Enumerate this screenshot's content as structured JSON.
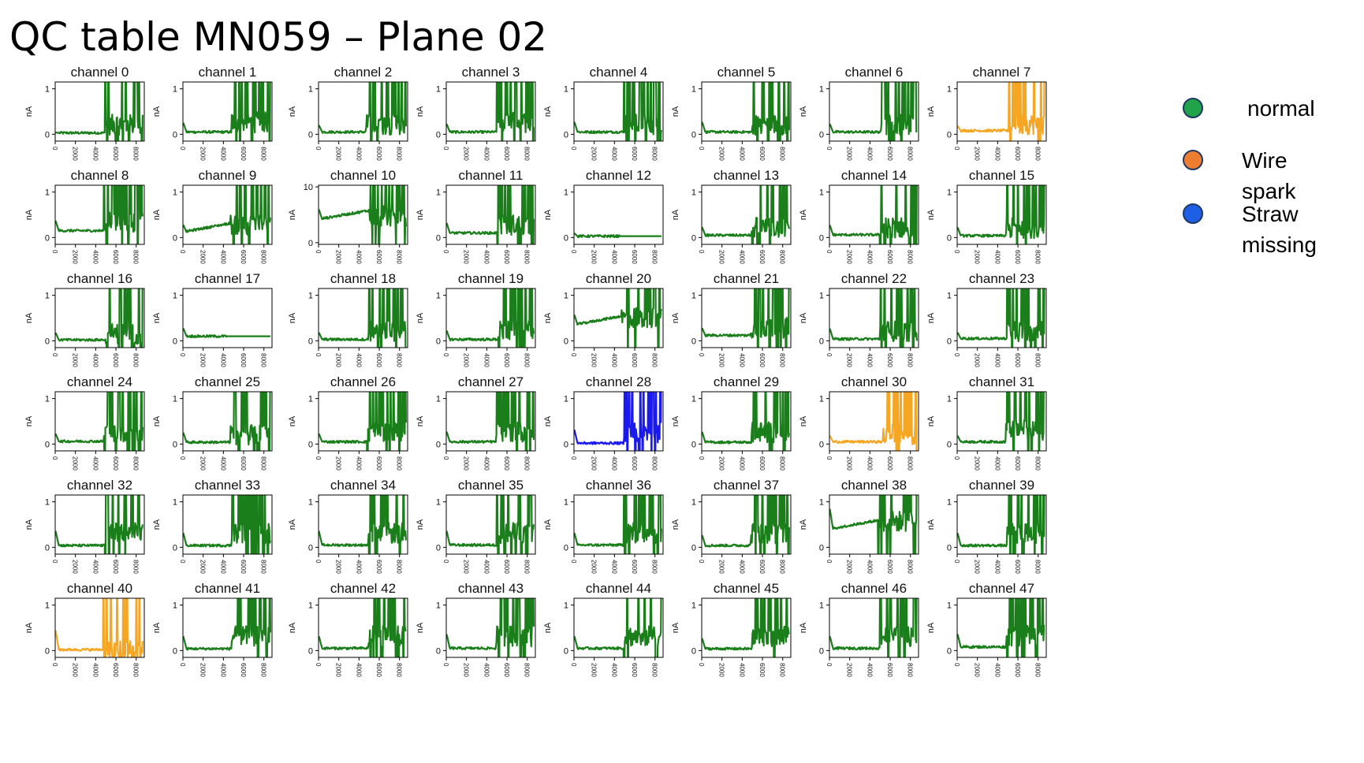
{
  "title": "QC table MN059 – Plane 02",
  "legend": {
    "items": [
      {
        "label": "normal",
        "color": "#21a34a"
      },
      {
        "label": "Wire spark",
        "color": "#ed7d31"
      },
      {
        "label": "Straw\nmissing",
        "color": "#1f5fe6"
      }
    ]
  },
  "chart_data": {
    "type": "line",
    "panel_count": 48,
    "ylabel": "nA",
    "x_ticks": [
      "0",
      "2000",
      "4000",
      "6000",
      "8000"
    ],
    "xlim": [
      0,
      8800
    ],
    "default_ylim": [
      -0.15,
      1.15
    ],
    "default_y_ticks": [
      "0",
      "1"
    ],
    "status_colors": {
      "normal": "#1a7f1a",
      "spark": "#f5a623",
      "missing": "#1a1aee"
    },
    "panels": [
      {
        "title": "channel 0",
        "status": "normal",
        "ylim": [
          -0.15,
          1.15
        ],
        "y_ticks": [
          "0",
          "1"
        ],
        "baseline": 0.03,
        "onset": 0.04,
        "burst_start": 4900,
        "burst_level": 0.2
      },
      {
        "title": "channel 1",
        "status": "normal",
        "ylim": [
          -0.15,
          1.15
        ],
        "y_ticks": [
          "0",
          "1"
        ],
        "baseline": 0.05,
        "onset": 0.28,
        "burst_start": 4800,
        "burst_level": 0.25
      },
      {
        "title": "channel 2",
        "status": "normal",
        "ylim": [
          -0.15,
          1.15
        ],
        "y_ticks": [
          "0",
          "1"
        ],
        "baseline": 0.05,
        "onset": 0.22,
        "burst_start": 4700,
        "burst_level": 0.2
      },
      {
        "title": "channel 3",
        "status": "normal",
        "ylim": [
          -0.15,
          1.15
        ],
        "y_ticks": [
          "0",
          "1"
        ],
        "baseline": 0.05,
        "onset": 0.25,
        "burst_start": 5000,
        "burst_level": 0.25
      },
      {
        "title": "channel 4",
        "status": "normal",
        "ylim": [
          -0.15,
          1.15
        ],
        "y_ticks": [
          "0",
          "1"
        ],
        "baseline": 0.05,
        "onset": 0.3,
        "burst_start": 4900,
        "burst_level": 0.2
      },
      {
        "title": "channel 5",
        "status": "normal",
        "ylim": [
          -0.15,
          1.15
        ],
        "y_ticks": [
          "0",
          "1"
        ],
        "baseline": 0.05,
        "onset": 0.3,
        "burst_start": 5000,
        "burst_level": 0.2
      },
      {
        "title": "channel 6",
        "status": "normal",
        "ylim": [
          -0.15,
          1.15
        ],
        "y_ticks": [
          "0",
          "1"
        ],
        "baseline": 0.05,
        "onset": 0.25,
        "burst_start": 5100,
        "burst_level": 0.2
      },
      {
        "title": "channel 7",
        "status": "spark",
        "ylim": [
          -0.15,
          1.15
        ],
        "y_ticks": [
          "0",
          "1"
        ],
        "baseline": 0.08,
        "onset": 0.2,
        "burst_start": 5100,
        "burst_level": 0.2
      },
      {
        "title": "channel 8",
        "status": "normal",
        "ylim": [
          -0.15,
          1.15
        ],
        "y_ticks": [
          "0",
          "1"
        ],
        "baseline": 0.15,
        "onset": 0.4,
        "burst_start": 4800,
        "burst_level": 0.3
      },
      {
        "title": "channel 9",
        "status": "normal",
        "ylim": [
          -0.15,
          1.15
        ],
        "y_ticks": [
          "0",
          "1"
        ],
        "baseline": 0.12,
        "onset": 0.3,
        "burst_start": 4700,
        "burst_level": 0.25
      },
      {
        "title": "channel 10",
        "status": "normal",
        "ylim": [
          -0.3,
          10.3
        ],
        "y_ticks": [
          "0",
          "10"
        ],
        "baseline": 4.2,
        "onset": 6.2,
        "burst_start": 5000,
        "burst_level": 3.5
      },
      {
        "title": "channel 11",
        "status": "normal",
        "ylim": [
          -0.15,
          1.15
        ],
        "y_ticks": [
          "0",
          "1"
        ],
        "baseline": 0.1,
        "onset": 0.35,
        "burst_start": 5000,
        "burst_level": 0.25
      },
      {
        "title": "channel 12",
        "status": "normal",
        "ylim": [
          -0.15,
          1.15
        ],
        "y_ticks": [
          "0",
          "1"
        ],
        "baseline": 0.03,
        "onset": 0.1,
        "burst_start": 4500,
        "burst_level": 0.0
      },
      {
        "title": "channel 13",
        "status": "normal",
        "ylim": [
          -0.15,
          1.15
        ],
        "y_ticks": [
          "0",
          "1"
        ],
        "baseline": 0.05,
        "onset": 0.25,
        "burst_start": 4900,
        "burst_level": 0.2
      },
      {
        "title": "channel 14",
        "status": "normal",
        "ylim": [
          -0.15,
          1.15
        ],
        "y_ticks": [
          "0",
          "1"
        ],
        "baseline": 0.06,
        "onset": 0.3,
        "burst_start": 5000,
        "burst_level": 0.2
      },
      {
        "title": "channel 15",
        "status": "normal",
        "ylim": [
          -0.15,
          1.15
        ],
        "y_ticks": [
          "0",
          "1"
        ],
        "baseline": 0.04,
        "onset": 0.25,
        "burst_start": 4800,
        "burst_level": 0.2
      },
      {
        "title": "channel 16",
        "status": "normal",
        "ylim": [
          -0.15,
          1.15
        ],
        "y_ticks": [
          "0",
          "1"
        ],
        "baseline": 0.02,
        "onset": 0.2,
        "burst_start": 5000,
        "burst_level": 0.15
      },
      {
        "title": "channel 17",
        "status": "normal",
        "ylim": [
          -0.15,
          1.15
        ],
        "y_ticks": [
          "0",
          "1"
        ],
        "baseline": 0.1,
        "onset": 0.3,
        "burst_start": 4300,
        "burst_level": 0.0
      },
      {
        "title": "channel 18",
        "status": "normal",
        "ylim": [
          -0.15,
          1.15
        ],
        "y_ticks": [
          "0",
          "1"
        ],
        "baseline": 0.03,
        "onset": 0.2,
        "burst_start": 4900,
        "burst_level": 0.2
      },
      {
        "title": "channel 19",
        "status": "normal",
        "ylim": [
          -0.15,
          1.15
        ],
        "y_ticks": [
          "0",
          "1"
        ],
        "baseline": 0.03,
        "onset": 0.25,
        "burst_start": 5100,
        "burst_level": 0.2
      },
      {
        "title": "channel 20",
        "status": "normal",
        "ylim": [
          -0.15,
          1.15
        ],
        "y_ticks": [
          "0",
          "1"
        ],
        "baseline": 0.35,
        "onset": 0.6,
        "burst_start": 4700,
        "burst_level": 0.4
      },
      {
        "title": "channel 21",
        "status": "normal",
        "ylim": [
          -0.15,
          1.15
        ],
        "y_ticks": [
          "0",
          "1"
        ],
        "baseline": 0.12,
        "onset": 0.3,
        "burst_start": 4800,
        "burst_level": 0.25
      },
      {
        "title": "channel 22",
        "status": "normal",
        "ylim": [
          -0.15,
          1.15
        ],
        "y_ticks": [
          "0",
          "1"
        ],
        "baseline": 0.04,
        "onset": 0.3,
        "burst_start": 5000,
        "burst_level": 0.2
      },
      {
        "title": "channel 23",
        "status": "normal",
        "ylim": [
          -0.15,
          1.15
        ],
        "y_ticks": [
          "0",
          "1"
        ],
        "baseline": 0.05,
        "onset": 0.2,
        "burst_start": 4900,
        "burst_level": 0.2
      },
      {
        "title": "channel 24",
        "status": "normal",
        "ylim": [
          -0.15,
          1.15
        ],
        "y_ticks": [
          "0",
          "1"
        ],
        "baseline": 0.06,
        "onset": 0.25,
        "burst_start": 4800,
        "burst_level": 0.25
      },
      {
        "title": "channel 25",
        "status": "normal",
        "ylim": [
          -0.15,
          1.15
        ],
        "y_ticks": [
          "0",
          "1"
        ],
        "baseline": 0.04,
        "onset": 0.28,
        "burst_start": 4700,
        "burst_level": 0.2
      },
      {
        "title": "channel 26",
        "status": "normal",
        "ylim": [
          -0.15,
          1.15
        ],
        "y_ticks": [
          "0",
          "1"
        ],
        "baseline": 0.05,
        "onset": 0.25,
        "burst_start": 4800,
        "burst_level": 0.25
      },
      {
        "title": "channel 27",
        "status": "normal",
        "ylim": [
          -0.15,
          1.15
        ],
        "y_ticks": [
          "0",
          "1"
        ],
        "baseline": 0.05,
        "onset": 0.3,
        "burst_start": 4900,
        "burst_level": 0.25
      },
      {
        "title": "channel 28",
        "status": "missing",
        "ylim": [
          -0.15,
          1.15
        ],
        "y_ticks": [
          "0",
          "1"
        ],
        "baseline": 0.02,
        "onset": 0.35,
        "burst_start": 4900,
        "burst_level": 0.25
      },
      {
        "title": "channel 29",
        "status": "normal",
        "ylim": [
          -0.15,
          1.15
        ],
        "y_ticks": [
          "0",
          "1"
        ],
        "baseline": 0.04,
        "onset": 0.3,
        "burst_start": 4900,
        "burst_level": 0.25
      },
      {
        "title": "channel 30",
        "status": "spark",
        "ylim": [
          -0.15,
          1.15
        ],
        "y_ticks": [
          "0",
          "1"
        ],
        "baseline": 0.05,
        "onset": 0.2,
        "burst_start": 5300,
        "burst_level": 0.2
      },
      {
        "title": "channel 31",
        "status": "normal",
        "ylim": [
          -0.15,
          1.15
        ],
        "y_ticks": [
          "0",
          "1"
        ],
        "baseline": 0.05,
        "onset": 0.2,
        "burst_start": 4800,
        "burst_level": 0.3
      },
      {
        "title": "channel 32",
        "status": "normal",
        "ylim": [
          -0.15,
          1.15
        ],
        "y_ticks": [
          "0",
          "1"
        ],
        "baseline": 0.04,
        "onset": 0.4,
        "burst_start": 4900,
        "burst_level": 0.3
      },
      {
        "title": "channel 33",
        "status": "normal",
        "ylim": [
          -0.15,
          1.15
        ],
        "y_ticks": [
          "0",
          "1"
        ],
        "baseline": 0.04,
        "onset": 0.35,
        "burst_start": 4800,
        "burst_level": 0.3
      },
      {
        "title": "channel 34",
        "status": "normal",
        "ylim": [
          -0.15,
          1.15
        ],
        "y_ticks": [
          "0",
          "1"
        ],
        "baseline": 0.05,
        "onset": 0.4,
        "burst_start": 4900,
        "burst_level": 0.3
      },
      {
        "title": "channel 35",
        "status": "normal",
        "ylim": [
          -0.15,
          1.15
        ],
        "y_ticks": [
          "0",
          "1"
        ],
        "baseline": 0.05,
        "onset": 0.4,
        "burst_start": 5000,
        "burst_level": 0.3
      },
      {
        "title": "channel 36",
        "status": "normal",
        "ylim": [
          -0.15,
          1.15
        ],
        "y_ticks": [
          "0",
          "1"
        ],
        "baseline": 0.05,
        "onset": 0.35,
        "burst_start": 4900,
        "burst_level": 0.3
      },
      {
        "title": "channel 37",
        "status": "normal",
        "ylim": [
          -0.15,
          1.15
        ],
        "y_ticks": [
          "0",
          "1"
        ],
        "baseline": 0.04,
        "onset": 0.3,
        "burst_start": 4800,
        "burst_level": 0.3
      },
      {
        "title": "channel 38",
        "status": "normal",
        "ylim": [
          -0.15,
          1.15
        ],
        "y_ticks": [
          "0",
          "1"
        ],
        "baseline": 0.4,
        "onset": 0.9,
        "burst_start": 4800,
        "burst_level": 0.45
      },
      {
        "title": "channel 39",
        "status": "normal",
        "ylim": [
          -0.15,
          1.15
        ],
        "y_ticks": [
          "0",
          "1"
        ],
        "baseline": 0.04,
        "onset": 0.35,
        "burst_start": 4900,
        "burst_level": 0.3
      },
      {
        "title": "channel 40",
        "status": "spark",
        "ylim": [
          -0.15,
          1.15
        ],
        "y_ticks": [
          "0",
          "1"
        ],
        "baseline": 0.02,
        "onset": 0.5,
        "burst_start": 4700,
        "burst_level": 0.0
      },
      {
        "title": "channel 41",
        "status": "normal",
        "ylim": [
          -0.15,
          1.15
        ],
        "y_ticks": [
          "0",
          "1"
        ],
        "baseline": 0.04,
        "onset": 0.35,
        "burst_start": 4800,
        "burst_level": 0.3
      },
      {
        "title": "channel 42",
        "status": "normal",
        "ylim": [
          -0.15,
          1.15
        ],
        "y_ticks": [
          "0",
          "1"
        ],
        "baseline": 0.05,
        "onset": 0.35,
        "burst_start": 4900,
        "burst_level": 0.3
      },
      {
        "title": "channel 43",
        "status": "normal",
        "ylim": [
          -0.15,
          1.15
        ],
        "y_ticks": [
          "0",
          "1"
        ],
        "baseline": 0.05,
        "onset": 0.4,
        "burst_start": 4900,
        "burst_level": 0.3
      },
      {
        "title": "channel 44",
        "status": "normal",
        "ylim": [
          -0.15,
          1.15
        ],
        "y_ticks": [
          "0",
          "1"
        ],
        "baseline": 0.05,
        "onset": 0.35,
        "burst_start": 4900,
        "burst_level": 0.3
      },
      {
        "title": "channel 45",
        "status": "normal",
        "ylim": [
          -0.15,
          1.15
        ],
        "y_ticks": [
          "0",
          "1"
        ],
        "baseline": 0.04,
        "onset": 0.3,
        "burst_start": 5000,
        "burst_level": 0.3
      },
      {
        "title": "channel 46",
        "status": "normal",
        "ylim": [
          -0.15,
          1.15
        ],
        "y_ticks": [
          "0",
          "1"
        ],
        "baseline": 0.05,
        "onset": 0.35,
        "burst_start": 5000,
        "burst_level": 0.3
      },
      {
        "title": "channel 47",
        "status": "normal",
        "ylim": [
          -0.15,
          1.15
        ],
        "y_ticks": [
          "0",
          "1"
        ],
        "baseline": 0.08,
        "onset": 0.4,
        "burst_start": 4800,
        "burst_level": 0.3
      }
    ]
  }
}
